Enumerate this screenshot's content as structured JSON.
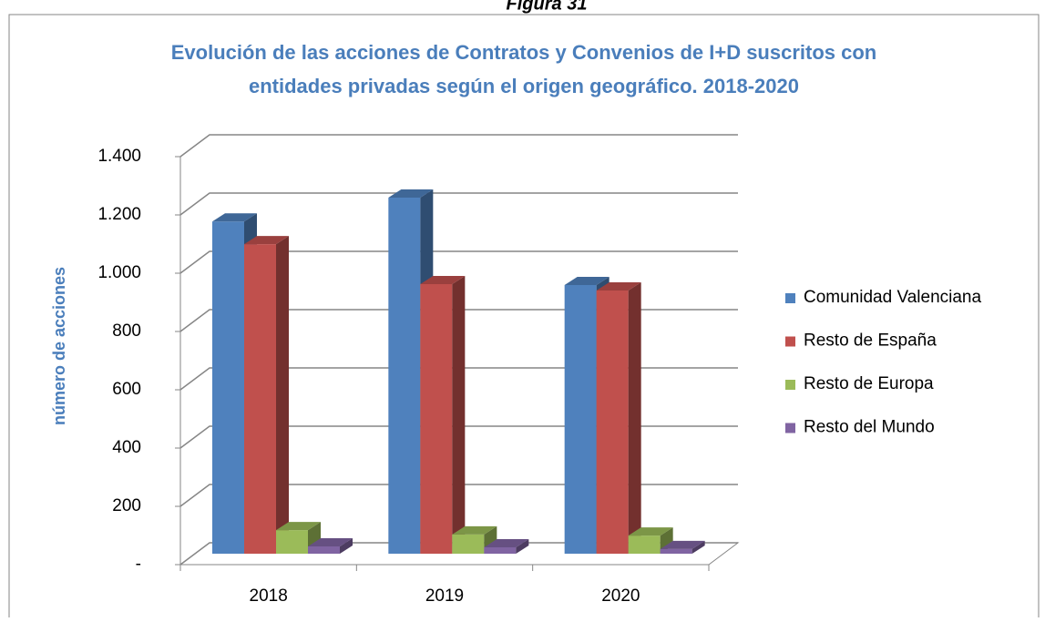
{
  "figure_label": "Figura 31",
  "chart_data": {
    "type": "bar3d",
    "title": [
      "Evolución de las acciones de Contratos y Convenios de I+D suscritos con",
      "entidades privadas según el origen geográfico. 2018-2020"
    ],
    "y_label": "número de acciones",
    "categories": [
      "2018",
      "2019",
      "2020"
    ],
    "series": [
      {
        "name": "Comunidad Valenciana",
        "color": "#4f81bd",
        "values": [
          1140,
          1222,
          922
        ]
      },
      {
        "name": "Resto de España",
        "color": "#c0504d",
        "values": [
          1062,
          925,
          903
        ]
      },
      {
        "name": "Resto de Europa",
        "color": "#9bbb59",
        "values": [
          81,
          66,
          62
        ]
      },
      {
        "name": "Resto del Mundo",
        "color": "#8064a2",
        "values": [
          25,
          22,
          16
        ]
      }
    ],
    "ylim": [
      0,
      1400
    ],
    "yticks": [
      {
        "value": 0,
        "label": "-"
      },
      200,
      400,
      600,
      800,
      {
        "value": 1000,
        "label": "1.000"
      },
      {
        "value": 1200,
        "label": "1.200"
      },
      {
        "value": 1400,
        "label": "1.400"
      }
    ],
    "grid": true,
    "legend": "right"
  }
}
